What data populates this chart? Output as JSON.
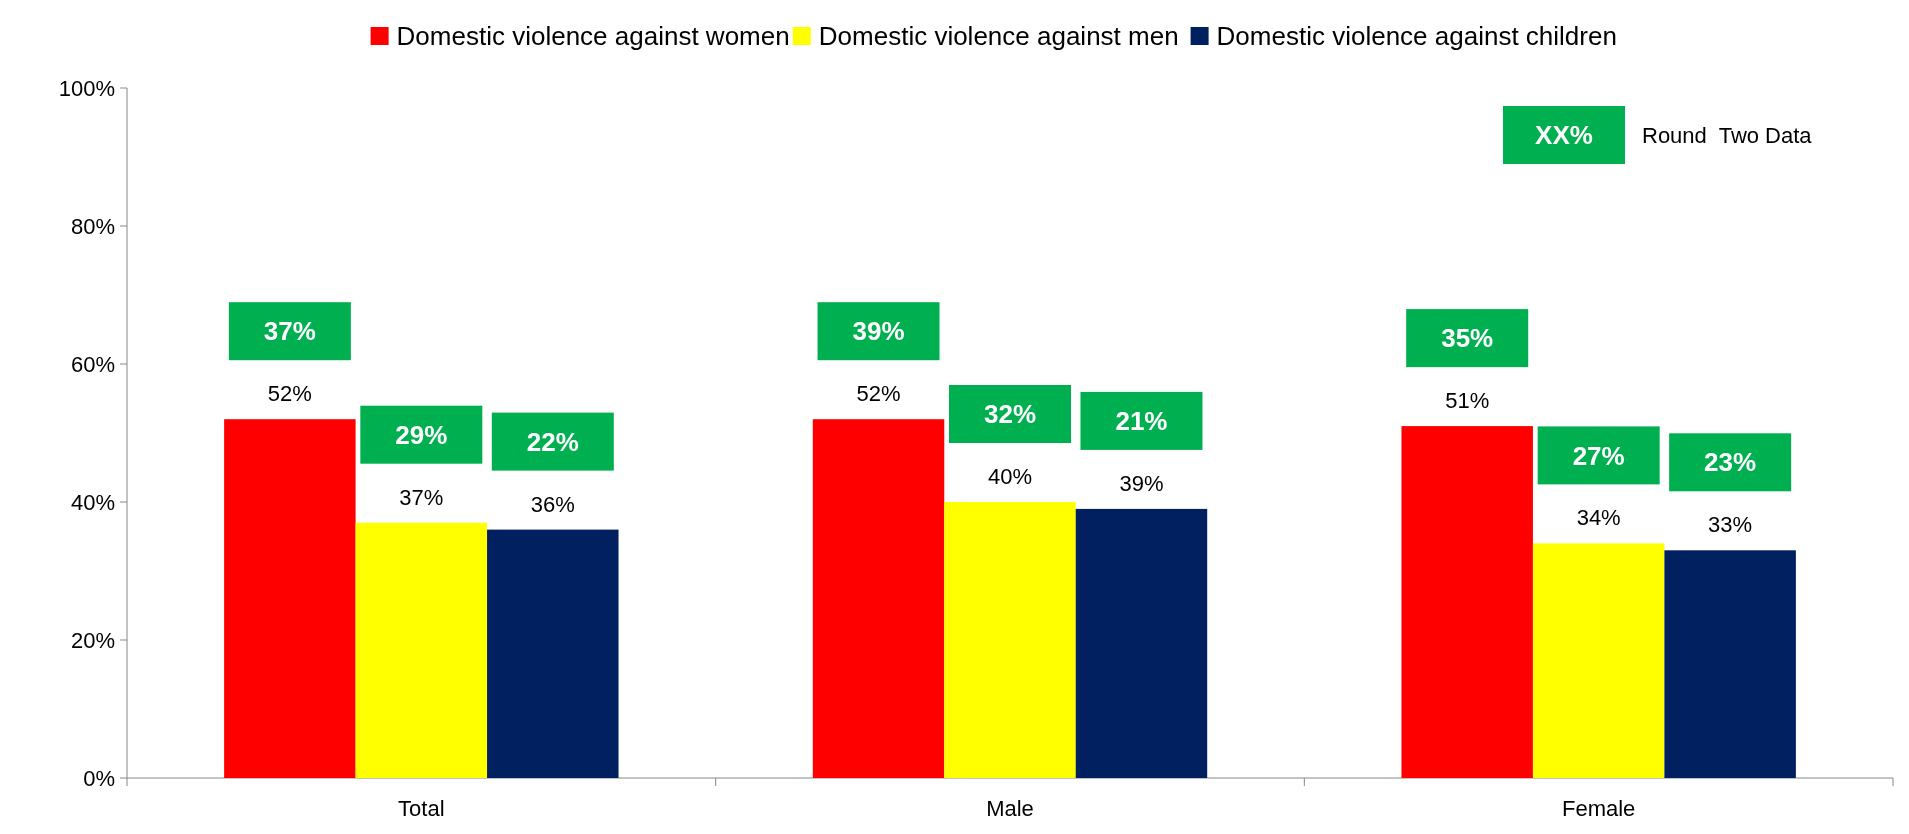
{
  "chart_data": {
    "type": "bar",
    "categories": [
      "Total",
      "Male",
      "Female"
    ],
    "series": [
      {
        "name": "Domestic violence against women",
        "color": "#ff0000",
        "values": [
          52,
          52,
          51
        ],
        "value_labels": [
          "52%",
          "52%",
          "51%"
        ]
      },
      {
        "name": "Domestic violence against men",
        "color": "#ffff00",
        "values": [
          37,
          40,
          34
        ],
        "value_labels": [
          "37%",
          "40%",
          "34%"
        ]
      },
      {
        "name": "Domestic violence against children",
        "color": "#002060",
        "values": [
          36,
          39,
          33
        ],
        "value_labels": [
          "36%",
          "39%",
          "33%"
        ]
      }
    ],
    "ylim": [
      0,
      100
    ],
    "yticks": [
      {
        "value": 0,
        "label": "0%"
      },
      {
        "value": 20,
        "label": "20%"
      },
      {
        "value": 40,
        "label": "40%"
      },
      {
        "value": 60,
        "label": "60%"
      },
      {
        "value": 80,
        "label": "80%"
      },
      {
        "value": 100,
        "label": "100%"
      }
    ],
    "legend": "top",
    "annotations": [
      "XX%",
      "Round  Two Data",
      "37%",
      "29%",
      "22%",
      "39%",
      "32%",
      "21%",
      "35%",
      "27%",
      "23%"
    ]
  }
}
